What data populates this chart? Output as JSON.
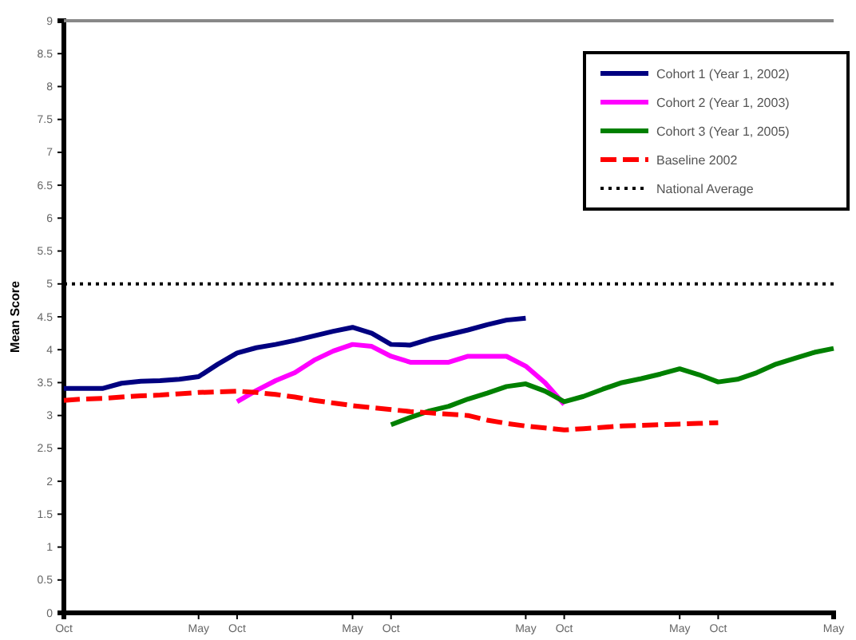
{
  "chart_data": {
    "type": "line",
    "ylabel": "Mean Score",
    "categories": [
      "Oct",
      null,
      null,
      null,
      null,
      null,
      null,
      "May",
      null,
      "Oct",
      null,
      null,
      null,
      null,
      null,
      "May",
      null,
      "Oct",
      null,
      null,
      null,
      null,
      null,
      null,
      "May",
      null,
      "Oct",
      null,
      null,
      null,
      null,
      null,
      "May",
      null,
      "Oct",
      null,
      null,
      null,
      null,
      null,
      "May"
    ],
    "ylim": [
      0,
      9
    ],
    "yticks": [
      0,
      0.5,
      1,
      1.5,
      2,
      2.5,
      3,
      3.5,
      4,
      4.5,
      5,
      5.5,
      6,
      6.5,
      7,
      7.5,
      8,
      8.5,
      9
    ],
    "series": [
      {
        "name": "Cohort 1 (Year 1, 2002)",
        "color": "#000080",
        "values": [
          3.41,
          3.41,
          3.41,
          3.49,
          3.52,
          3.53,
          3.55,
          3.59,
          3.78,
          3.95,
          4.03,
          4.08,
          4.14,
          4.21,
          4.28,
          4.34,
          4.25,
          4.08,
          4.07,
          4.16,
          4.23,
          4.3,
          4.38,
          4.45,
          4.48,
          null,
          null,
          null,
          null,
          null,
          null,
          null,
          null,
          null,
          null,
          null,
          null,
          null,
          null,
          null,
          null
        ]
      },
      {
        "name": "Cohort 2 (Year 1, 2003)",
        "color": "#ff00ff",
        "values": [
          null,
          null,
          null,
          null,
          null,
          null,
          null,
          null,
          null,
          3.21,
          3.38,
          3.53,
          3.65,
          3.84,
          3.98,
          4.08,
          4.05,
          3.9,
          3.81,
          3.81,
          3.81,
          3.9,
          3.9,
          3.9,
          3.75,
          3.5,
          3.17,
          null,
          null,
          null,
          null,
          null,
          null,
          null,
          null,
          null,
          null,
          null,
          null,
          null,
          null
        ]
      },
      {
        "name": "Cohort 3 (Year 1, 2005)",
        "color": "#008000",
        "values": [
          null,
          null,
          null,
          null,
          null,
          null,
          null,
          null,
          null,
          null,
          null,
          null,
          null,
          null,
          null,
          null,
          null,
          2.86,
          2.97,
          3.07,
          3.14,
          3.25,
          3.34,
          3.44,
          3.48,
          3.37,
          3.21,
          3.29,
          3.4,
          3.5,
          3.56,
          3.63,
          3.71,
          3.62,
          3.51,
          3.55,
          3.65,
          3.78,
          3.87,
          3.96,
          4.02
        ]
      },
      {
        "name": "Baseline 2002",
        "color": "#ff0000",
        "line_style": "dashed",
        "values": [
          3.23,
          3.25,
          3.26,
          3.28,
          3.3,
          3.31,
          3.33,
          3.35,
          3.36,
          3.37,
          3.35,
          3.32,
          3.28,
          3.23,
          3.19,
          3.15,
          3.12,
          3.09,
          3.06,
          3.04,
          3.02,
          3.0,
          2.93,
          2.88,
          2.84,
          2.81,
          2.78,
          2.8,
          2.82,
          2.84,
          2.85,
          2.86,
          2.87,
          2.88,
          2.89,
          null,
          null,
          null,
          null,
          null,
          null
        ]
      }
    ],
    "ref_lines": [
      {
        "axis": "y",
        "value": 5,
        "label": "National Average",
        "color": "#000000",
        "line_style": "dotted"
      }
    ],
    "legend": "top right"
  }
}
